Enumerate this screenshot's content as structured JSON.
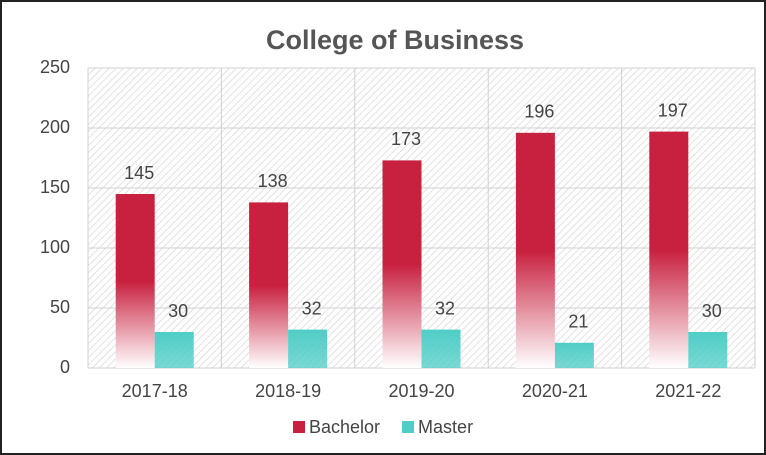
{
  "chart_data": {
    "type": "bar",
    "title": "College of Business",
    "categories": [
      "2017-18",
      "2018-19",
      "2019-20",
      "2020-21",
      "2021-22"
    ],
    "series": [
      {
        "name": "Bachelor",
        "color": "#c8203f",
        "values": [
          145,
          138,
          173,
          196,
          197
        ]
      },
      {
        "name": "Master",
        "color": "#4fcdc6",
        "values": [
          30,
          32,
          32,
          21,
          30
        ]
      }
    ],
    "ylim": [
      0,
      250
    ],
    "yticks": [
      0,
      50,
      100,
      150,
      200,
      250
    ],
    "grid": true,
    "legend": "bottom"
  }
}
